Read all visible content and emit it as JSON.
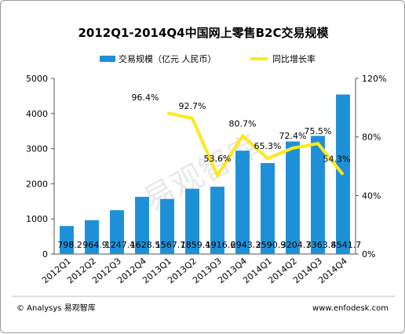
{
  "chart_data": {
    "type": "bar",
    "title": "2012Q1-2014Q4中国网上零售B2C交易规模",
    "categories": [
      "2012Q1",
      "2012Q2",
      "2012Q3",
      "2012Q4",
      "2013Q1",
      "2013Q2",
      "2013Q3",
      "2013Q4",
      "2014Q1",
      "2014Q2",
      "2014Q3",
      "2014Q4"
    ],
    "series": [
      {
        "name": "交易规模（亿元 人民币）",
        "type": "bar",
        "axis": "left",
        "color": "#1e90d8",
        "values": [
          798.2,
          964.9,
          1247.4,
          1628.5,
          1567.7,
          1859.4,
          1916.6,
          2943.3,
          2590.9,
          3204.7,
          3363.8,
          4541.7
        ],
        "labels": [
          "798.2",
          "964.9",
          "1247.4",
          "1628.5",
          "1567.7",
          "1859.4",
          "1916.6",
          "2943.3",
          "2590.9",
          "3204.7",
          "3363.8",
          "4541.7"
        ]
      },
      {
        "name": "同比增长率",
        "type": "line",
        "axis": "right",
        "color": "#ffe81a",
        "values": [
          null,
          null,
          null,
          null,
          96.4,
          92.7,
          53.6,
          80.7,
          65.3,
          72.4,
          75.5,
          54.3
        ],
        "labels": [
          "",
          "",
          "",
          "",
          "96.4%",
          "92.7%",
          "53.6%",
          "80.7%",
          "65.3%",
          "72.4%",
          "75.5%",
          "54.3%"
        ]
      }
    ],
    "yaxis_left": {
      "min": 0,
      "max": 5000,
      "ticks": [
        "0",
        "1000",
        "2000",
        "3000",
        "4000",
        "5000"
      ]
    },
    "yaxis_right": {
      "min": 0,
      "max": 120,
      "ticks": [
        "0%",
        "40%",
        "80%",
        "120%"
      ]
    },
    "legend_position": "top",
    "grid": false
  },
  "watermark": "易观智库",
  "footer": {
    "left": "© Analysys 易观智库",
    "right": "www.enfodesk.com"
  }
}
